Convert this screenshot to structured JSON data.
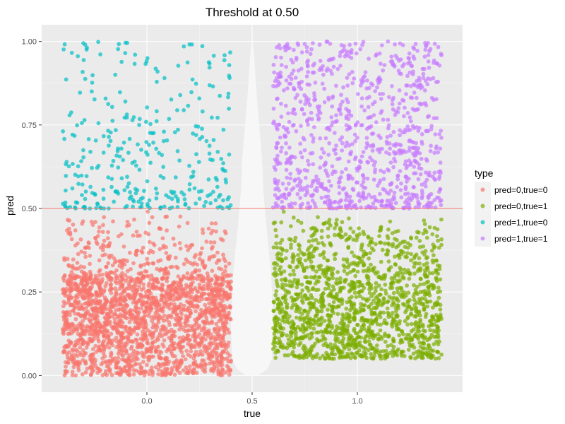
{
  "chart_data": {
    "type": "scatter",
    "title": "Threshold at 0.50",
    "xlabel": "true",
    "ylabel": "pred",
    "xlim": [
      -0.5,
      1.5
    ],
    "ylim": [
      -0.05,
      1.05
    ],
    "x_ticks": [
      0.0,
      0.5,
      1.0
    ],
    "x_tick_labels": [
      "0.0",
      "0.5",
      "1.0"
    ],
    "y_ticks": [
      0.0,
      0.25,
      0.5,
      0.75,
      1.0
    ],
    "y_tick_labels": [
      "0.00",
      "0.25",
      "0.50",
      "0.75",
      "1.00"
    ],
    "threshold": 0.5,
    "threshold_color": "#F8766D",
    "panel_background": "#EBEBEB",
    "grid": true,
    "legend": {
      "title": "type",
      "position": "right",
      "entries": [
        "pred=0,true=0",
        "pred=0,true=1",
        "pred=1,true=0",
        "pred=1,true=1"
      ]
    },
    "series": [
      {
        "name": "pred=0,true=0",
        "color": "#F8766D",
        "x_range": [
          -0.4,
          0.4
        ],
        "y_range": [
          0.0,
          0.5
        ],
        "density": "high, concentrated below 0.30"
      },
      {
        "name": "pred=0,true=1",
        "color": "#7CAE00",
        "x_range": [
          0.6,
          1.4
        ],
        "y_range": [
          0.0,
          0.5
        ],
        "density": "high, concentrated 0.10–0.35"
      },
      {
        "name": "pred=1,true=0",
        "color": "#00BFC4",
        "x_range": [
          -0.4,
          0.4
        ],
        "y_range": [
          0.5,
          1.0
        ],
        "density": "sparse, thinning toward 1.0"
      },
      {
        "name": "pred=1,true=1",
        "color": "#C77CFF",
        "x_range": [
          0.6,
          1.4
        ],
        "y_range": [
          0.5,
          1.0
        ],
        "density": "moderate, thinning toward 1.0"
      }
    ]
  }
}
